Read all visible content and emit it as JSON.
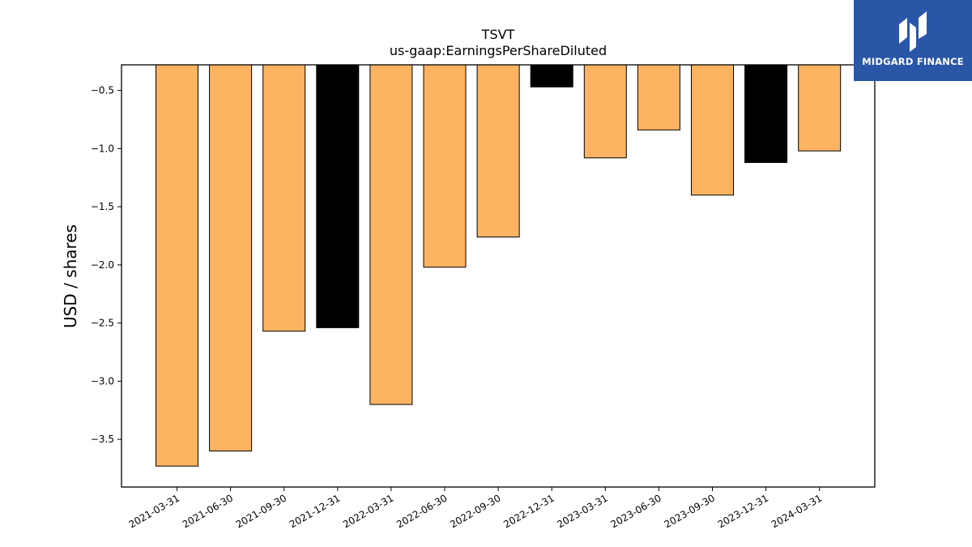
{
  "chart_data": {
    "type": "bar",
    "title": "TSVT",
    "subtitle": "us-gaap:EarningsPerShareDiluted",
    "ylabel": "USD / shares",
    "xlabel": "",
    "ylim": [
      -3.91,
      -0.28
    ],
    "yticks": [
      -0.5,
      -1.0,
      -1.5,
      -2.0,
      -2.5,
      -3.0,
      -3.5
    ],
    "ytick_labels": [
      "−0.5",
      "−1.0",
      "−1.5",
      "−2.0",
      "−2.5",
      "−3.0",
      "−3.5"
    ],
    "categories": [
      "2021-03-31",
      "2021-06-30",
      "2021-09-30",
      "2021-12-31",
      "2022-03-31",
      "2022-06-30",
      "2022-09-30",
      "2022-12-31",
      "2023-03-31",
      "2023-06-30",
      "2023-09-30",
      "2023-12-31",
      "2024-03-31"
    ],
    "values": [
      -3.73,
      -3.6,
      -2.57,
      -2.54,
      -3.2,
      -2.02,
      -1.76,
      -0.47,
      -1.08,
      -0.84,
      -1.4,
      -1.12,
      -1.02
    ],
    "bar_colors": [
      "#fdb462",
      "#fdb462",
      "#fdb462",
      "#000000",
      "#fdb462",
      "#fdb462",
      "#fdb462",
      "#000000",
      "#fdb462",
      "#fdb462",
      "#fdb462",
      "#000000",
      "#fdb462"
    ],
    "grid": false
  },
  "logo": {
    "text": "MIDGARD FINANCE",
    "background": "#2a56a8",
    "icon": "midgard-logo-icon"
  }
}
